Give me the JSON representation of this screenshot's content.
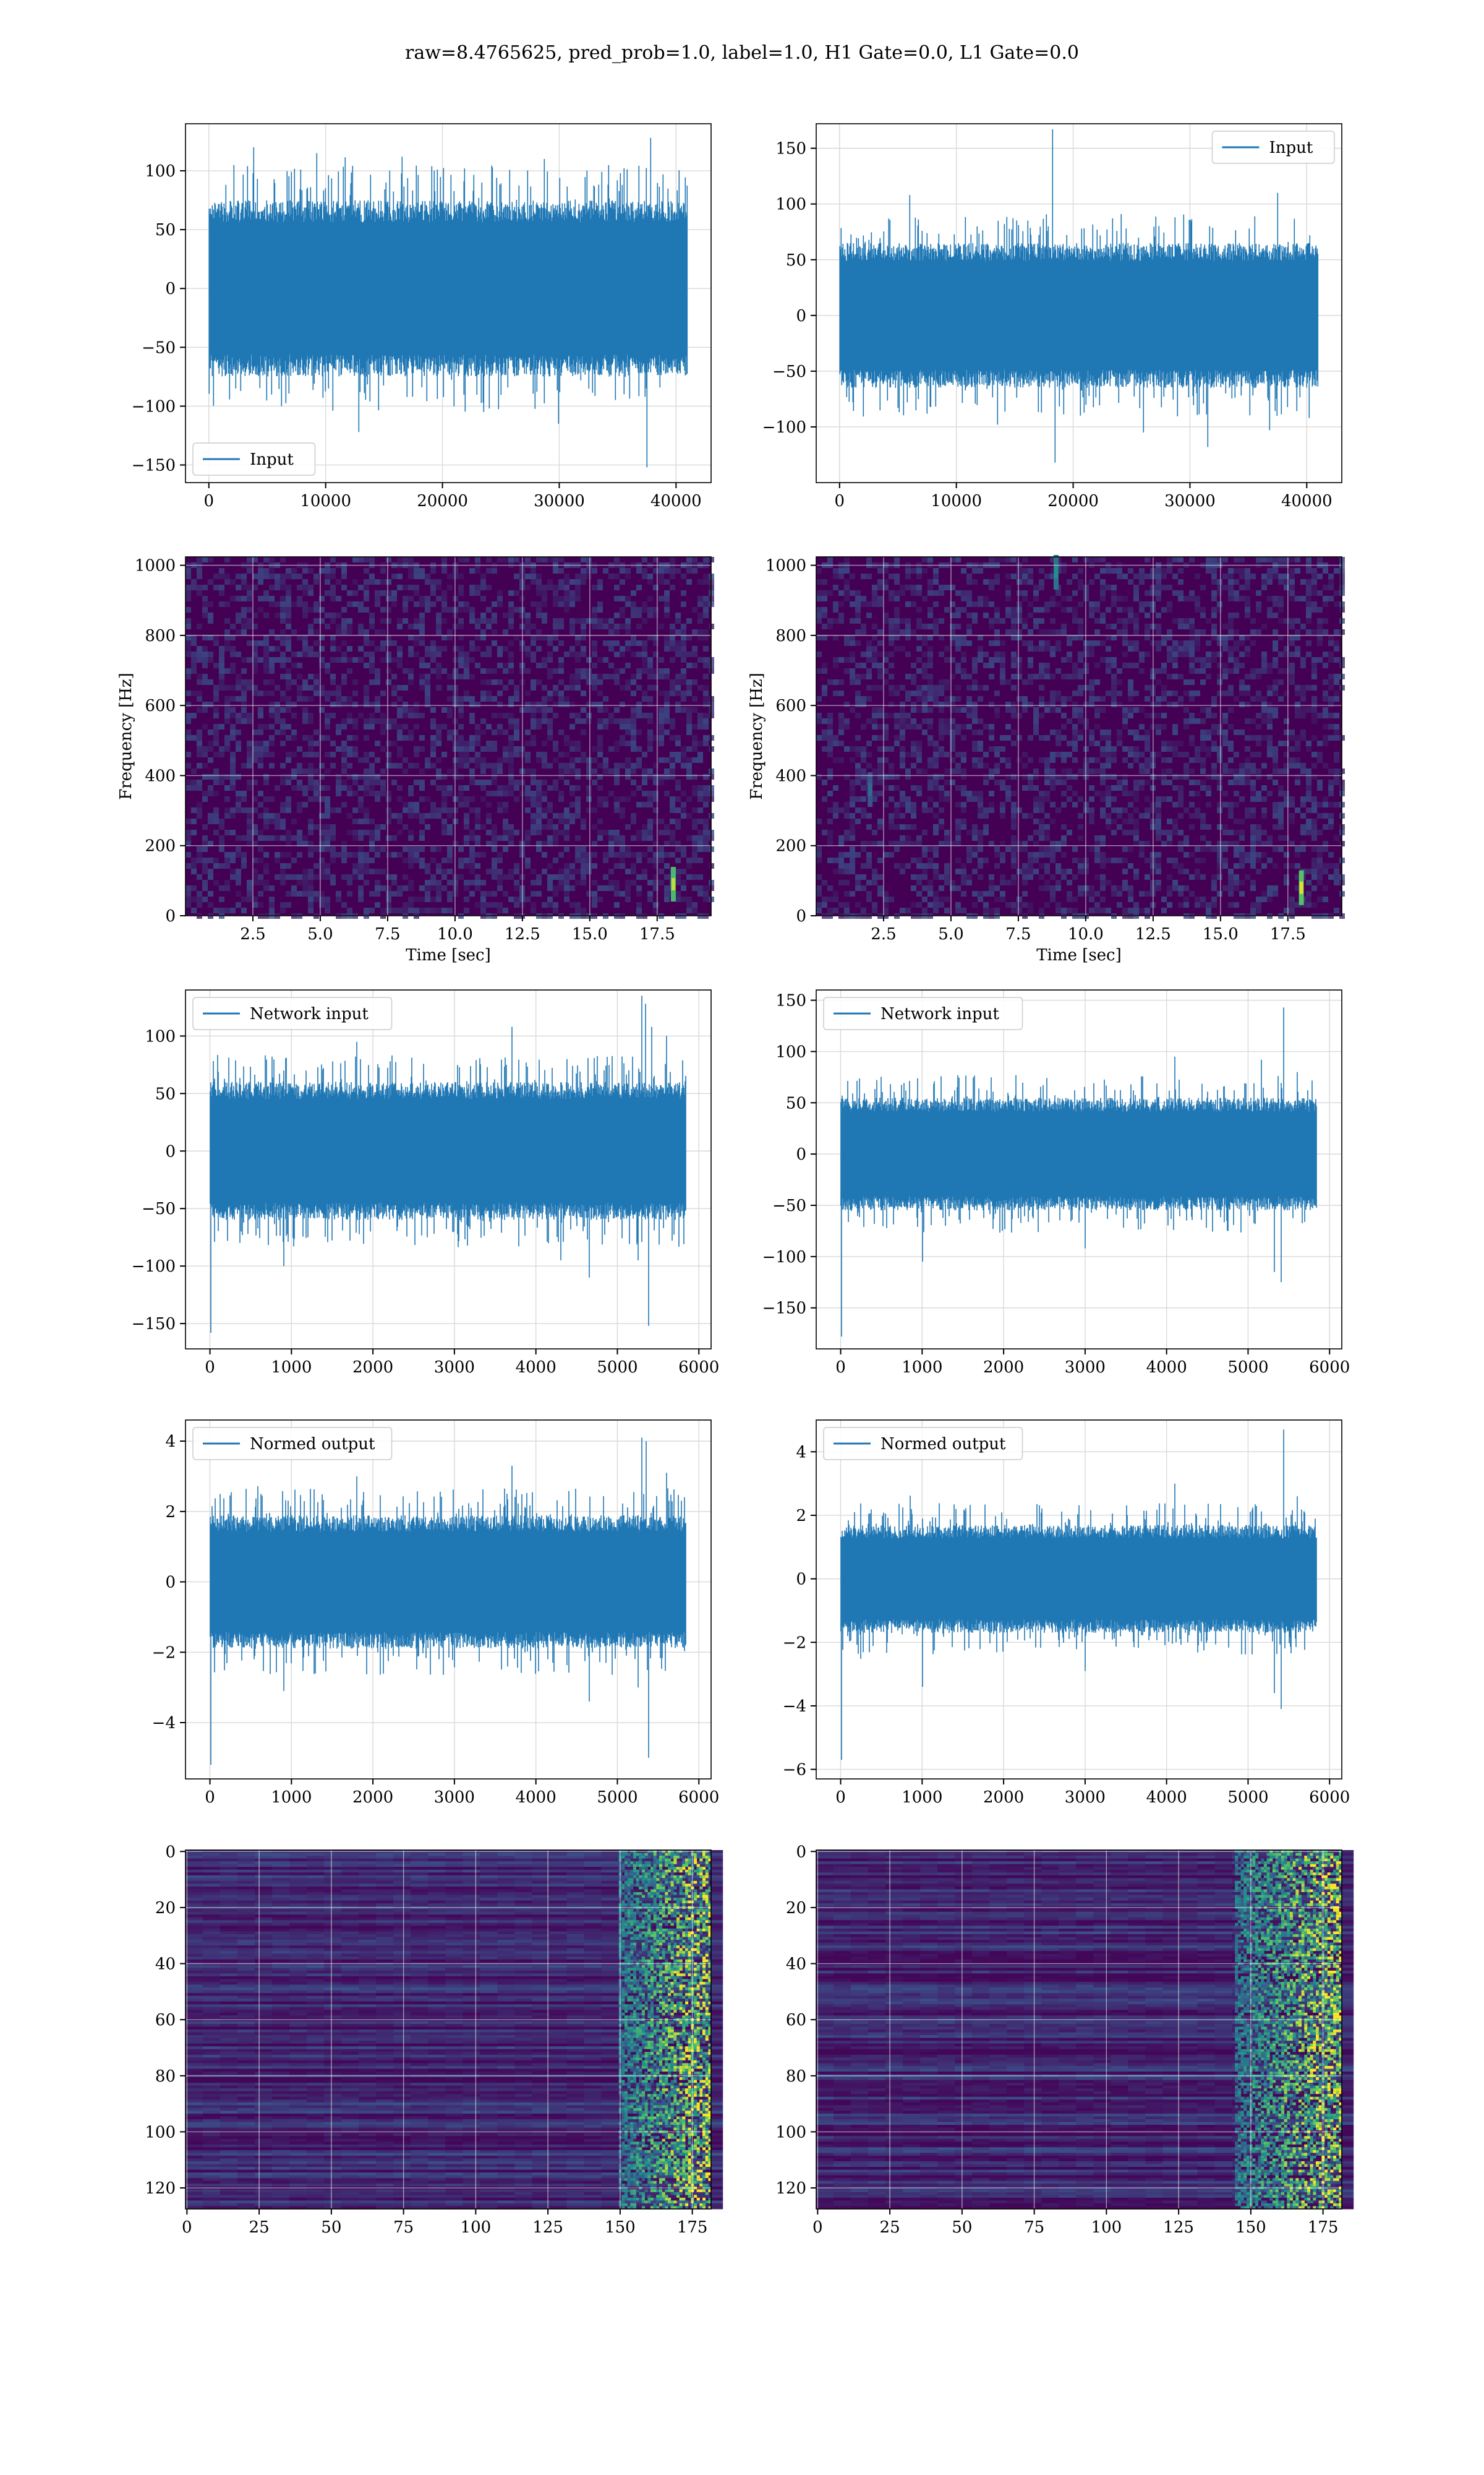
{
  "figure": {
    "title": "raw=8.4765625, pred_prob=1.0, label=1.0, H1 Gate=0.0, L1 Gate=0.0"
  },
  "colors": {
    "series": "#1f77b4",
    "grid": "#d9d9d9",
    "viridis_low": "#440154",
    "viridis_mid": "#21918c",
    "viridis_high": "#fde725"
  },
  "chart_data": [
    {
      "id": "input-h1",
      "type": "line",
      "title": "",
      "xlabel": "",
      "ylabel": "",
      "xlim": [
        -2000,
        43000
      ],
      "ylim": [
        -165,
        140
      ],
      "xticks": [
        0,
        10000,
        20000,
        30000,
        40000
      ],
      "yticks": [
        -150,
        -100,
        -50,
        0,
        50,
        100
      ],
      "legend": "lower-left",
      "series": [
        {
          "name": "Input",
          "n_samples": 40960,
          "envelope": 75,
          "noise_sd": 25,
          "spikes": [
            [
              2100,
              105
            ],
            [
              3800,
              120
            ],
            [
              9200,
              115
            ],
            [
              12800,
              -122
            ],
            [
              16500,
              112
            ],
            [
              23500,
              -105
            ],
            [
              28700,
              110
            ],
            [
              29900,
              -115
            ],
            [
              37500,
              -152
            ],
            [
              37800,
              128
            ],
            [
              35200,
              98
            ],
            [
              6200,
              -100
            ]
          ]
        }
      ]
    },
    {
      "id": "input-l1",
      "type": "line",
      "title": "",
      "xlabel": "",
      "ylabel": "",
      "xlim": [
        -2000,
        43000
      ],
      "ylim": [
        -150,
        172
      ],
      "xticks": [
        0,
        10000,
        20000,
        30000,
        40000
      ],
      "yticks": [
        -100,
        -50,
        0,
        50,
        100,
        150
      ],
      "legend": "upper-right",
      "series": [
        {
          "name": "Input",
          "n_samples": 40960,
          "envelope": 65,
          "noise_sd": 22,
          "spikes": [
            [
              -200,
              -103
            ],
            [
              6000,
              108
            ],
            [
              13500,
              -98
            ],
            [
              18200,
              167
            ],
            [
              18400,
              -132
            ],
            [
              26000,
              -105
            ],
            [
              31500,
              -118
            ],
            [
              36800,
              -103
            ],
            [
              37500,
              110
            ],
            [
              40200,
              -92
            ]
          ]
        }
      ]
    },
    {
      "id": "spec-h1",
      "type": "heatmap",
      "title": "",
      "xlabel": "Time [sec]",
      "ylabel": "Frequency [Hz]",
      "xlim": [
        0,
        19.5
      ],
      "ylim": [
        0,
        1024
      ],
      "xticks": [
        2.5,
        5.0,
        7.5,
        10.0,
        12.5,
        15.0,
        17.5
      ],
      "xtick_labels": [
        "2.5",
        "5.0",
        "7.5",
        "10.0",
        "12.5",
        "15.0",
        "17.5"
      ],
      "yticks": [
        0,
        200,
        400,
        600,
        800,
        1000
      ],
      "colormap": "viridis",
      "hotspots": [
        {
          "t": 18.1,
          "f": 90,
          "intensity": 0.9
        }
      ]
    },
    {
      "id": "spec-l1",
      "type": "heatmap",
      "title": "",
      "xlabel": "Time [sec]",
      "ylabel": "Frequency [Hz]",
      "xlim": [
        0,
        19.5
      ],
      "ylim": [
        0,
        1024
      ],
      "xticks": [
        2.5,
        5.0,
        7.5,
        10.0,
        12.5,
        15.0,
        17.5
      ],
      "xtick_labels": [
        "2.5",
        "5.0",
        "7.5",
        "10.0",
        "12.5",
        "15.0",
        "17.5"
      ],
      "yticks": [
        0,
        200,
        400,
        600,
        800,
        1000
      ],
      "colormap": "viridis",
      "hotspots": [
        {
          "t": 18.0,
          "f": 80,
          "intensity": 0.95
        },
        {
          "t": 8.9,
          "f": 980,
          "intensity": 0.5
        },
        {
          "t": 2.0,
          "f": 360,
          "intensity": 0.35
        }
      ]
    },
    {
      "id": "network-h1",
      "type": "line",
      "title": "",
      "xlabel": "",
      "ylabel": "",
      "xlim": [
        -300,
        6150
      ],
      "ylim": [
        -172,
        140
      ],
      "xticks": [
        0,
        1000,
        2000,
        3000,
        4000,
        5000,
        6000
      ],
      "yticks": [
        -150,
        -100,
        -50,
        0,
        50,
        100
      ],
      "legend": "upper-left",
      "series": [
        {
          "name": "Network input",
          "n_samples": 5840,
          "envelope": 60,
          "noise_sd": 22,
          "spikes": [
            [
              5,
              -158
            ],
            [
              900,
              -100
            ],
            [
              1800,
              95
            ],
            [
              3700,
              108
            ],
            [
              4300,
              -95
            ],
            [
              4650,
              -110
            ],
            [
              5300,
              135
            ],
            [
              5340,
              128
            ],
            [
              5380,
              -152
            ],
            [
              5420,
              108
            ],
            [
              5250,
              -95
            ],
            [
              5600,
              100
            ]
          ]
        }
      ]
    },
    {
      "id": "network-l1",
      "type": "line",
      "title": "",
      "xlabel": "",
      "ylabel": "",
      "xlim": [
        -300,
        6150
      ],
      "ylim": [
        -190,
        160
      ],
      "xticks": [
        0,
        1000,
        2000,
        3000,
        4000,
        5000,
        6000
      ],
      "yticks": [
        -150,
        -100,
        -50,
        0,
        50,
        100,
        150
      ],
      "legend": "upper-left",
      "series": [
        {
          "name": "Network input",
          "n_samples": 5840,
          "envelope": 55,
          "noise_sd": 20,
          "spikes": [
            [
              5,
              -178
            ],
            [
              1000,
              -105
            ],
            [
              4100,
              95
            ],
            [
              5160,
              92
            ],
            [
              5430,
              143
            ],
            [
              5400,
              -125
            ],
            [
              5320,
              -115
            ],
            [
              5600,
              80
            ],
            [
              3000,
              -92
            ]
          ]
        }
      ]
    },
    {
      "id": "normed-h1",
      "type": "line",
      "title": "",
      "xlabel": "",
      "ylabel": "",
      "xlim": [
        -300,
        6150
      ],
      "ylim": [
        -5.6,
        4.6
      ],
      "xticks": [
        0,
        1000,
        2000,
        3000,
        4000,
        5000,
        6000
      ],
      "yticks": [
        -4,
        -2,
        0,
        2,
        4
      ],
      "legend": "upper-left",
      "series": [
        {
          "name": "Normed output",
          "n_samples": 5840,
          "envelope": 1.9,
          "noise_sd": 0.7,
          "spikes": [
            [
              5,
              -5.2
            ],
            [
              900,
              -3.1
            ],
            [
              1800,
              3.0
            ],
            [
              3700,
              3.3
            ],
            [
              4650,
              -3.4
            ],
            [
              5300,
              4.1
            ],
            [
              5350,
              4.0
            ],
            [
              5380,
              -5.0
            ],
            [
              5250,
              -3.0
            ],
            [
              5600,
              3.1
            ]
          ]
        }
      ]
    },
    {
      "id": "normed-l1",
      "type": "line",
      "title": "",
      "xlabel": "",
      "ylabel": "",
      "xlim": [
        -300,
        6150
      ],
      "ylim": [
        -6.3,
        5.0
      ],
      "xticks": [
        0,
        1000,
        2000,
        3000,
        4000,
        5000,
        6000
      ],
      "yticks": [
        -6,
        -4,
        -2,
        0,
        2,
        4
      ],
      "legend": "upper-left",
      "series": [
        {
          "name": "Normed output",
          "n_samples": 5840,
          "envelope": 1.7,
          "noise_sd": 0.65,
          "spikes": [
            [
              5,
              -5.7
            ],
            [
              1000,
              -3.4
            ],
            [
              4100,
              3.0
            ],
            [
              5430,
              4.7
            ],
            [
              5400,
              -4.1
            ],
            [
              5320,
              -3.6
            ],
            [
              5600,
              2.6
            ],
            [
              3000,
              -2.9
            ]
          ]
        }
      ]
    },
    {
      "id": "features-h1",
      "type": "heatmap",
      "title": "",
      "xlabel": "",
      "ylabel": "",
      "xlim": [
        -0.5,
        181.5
      ],
      "ylim": [
        127.5,
        -0.5
      ],
      "xticks": [
        0,
        25,
        50,
        75,
        100,
        125,
        150,
        175
      ],
      "yticks": [
        0,
        20,
        40,
        60,
        80,
        100,
        120
      ],
      "colormap": "viridis",
      "rows": 128,
      "cols": 182,
      "activity_start": 150
    },
    {
      "id": "features-l1",
      "type": "heatmap",
      "title": "",
      "xlabel": "",
      "ylabel": "",
      "xlim": [
        -0.5,
        181.5
      ],
      "ylim": [
        127.5,
        -0.5
      ],
      "xticks": [
        0,
        25,
        50,
        75,
        100,
        125,
        150,
        175
      ],
      "yticks": [
        0,
        20,
        40,
        60,
        80,
        100,
        120
      ],
      "colormap": "viridis",
      "rows": 128,
      "cols": 182,
      "activity_start": 145
    }
  ]
}
